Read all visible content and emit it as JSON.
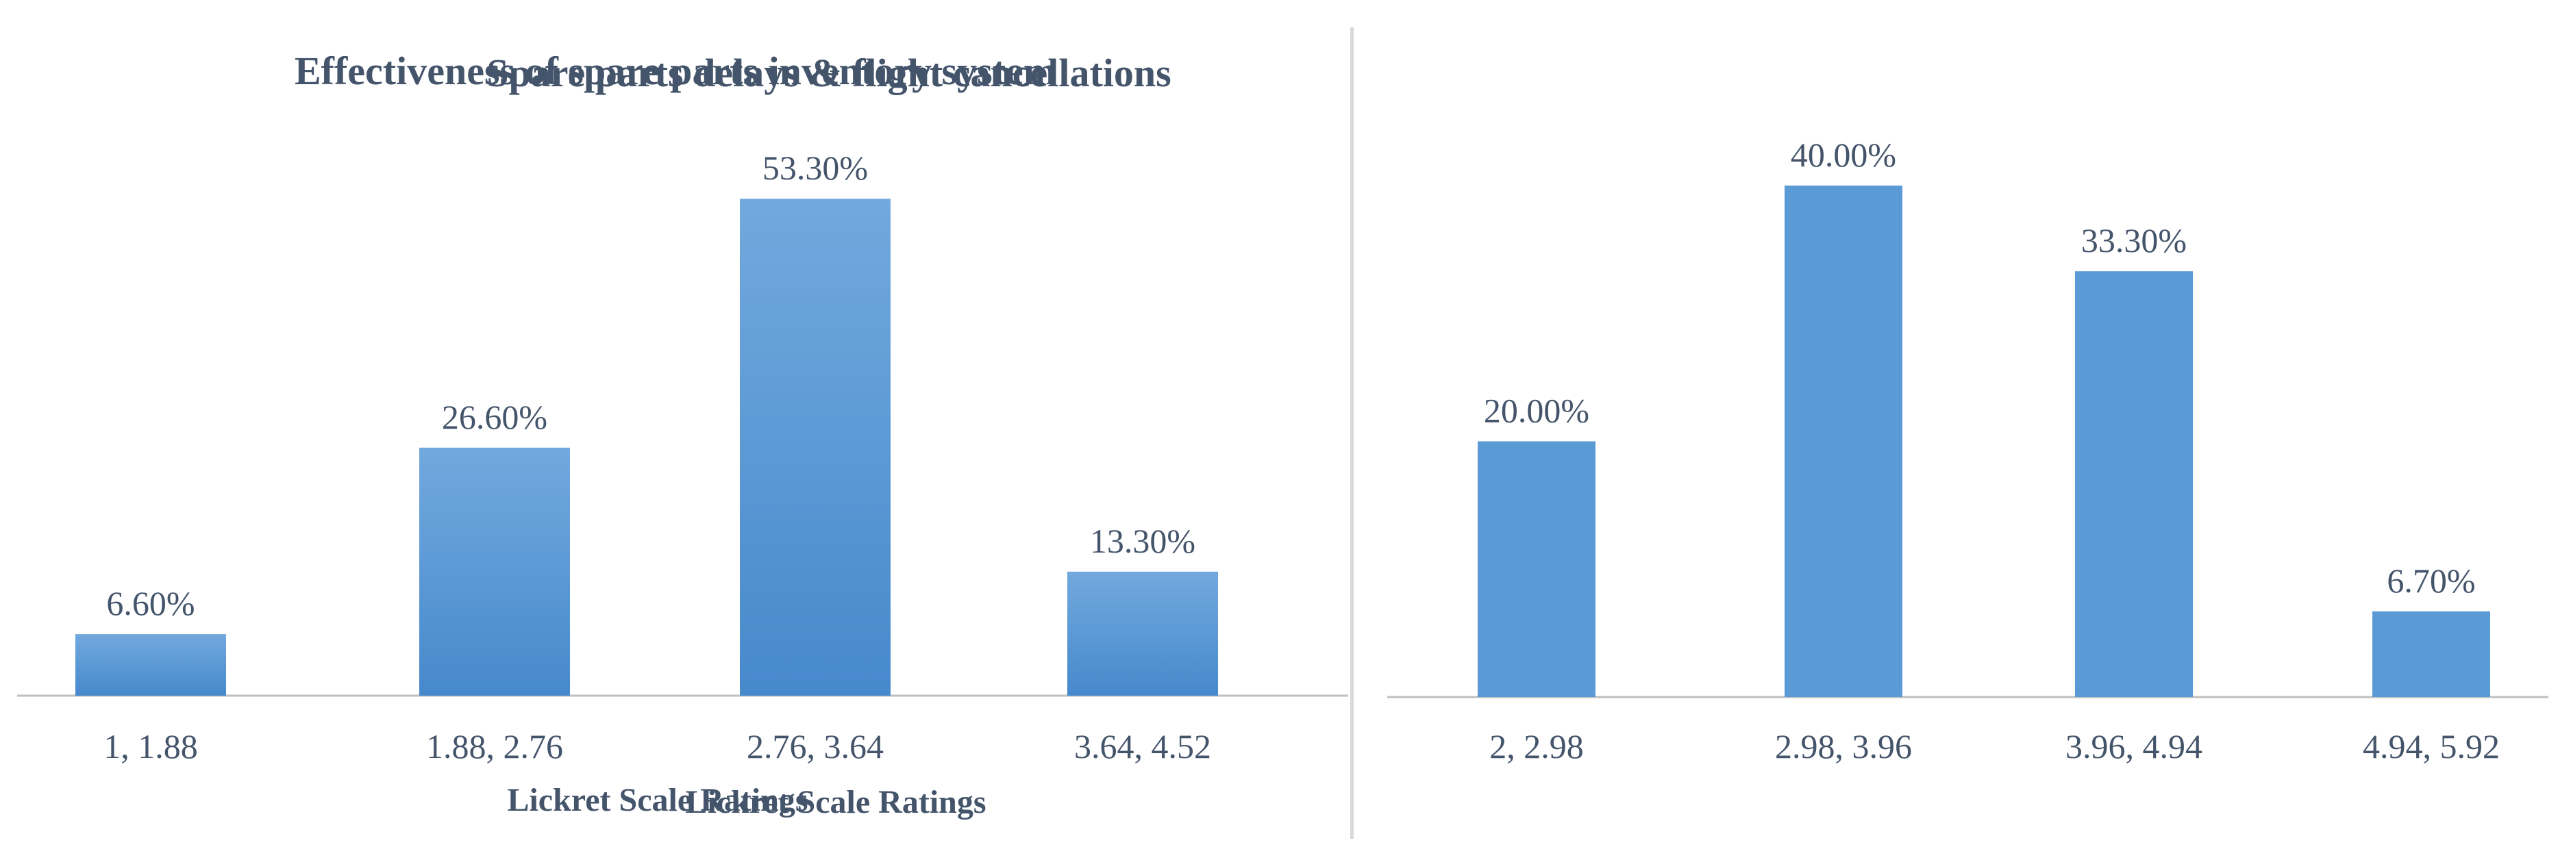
{
  "chart_data": [
    {
      "type": "bar",
      "title": "Effectiveness of spare parts inventory system",
      "xlabel": "Lickret Scale Ratings",
      "ylabel": "",
      "categories": [
        "1, 1.88",
        "1.88, 2.76",
        "2.76, 3.64",
        "3.64, 4.52"
      ],
      "values": [
        6.6,
        26.6,
        53.3,
        13.3
      ],
      "data_labels": [
        "6.60%",
        "26.60%",
        "53.30%",
        "13.30%"
      ],
      "ylim": [
        0,
        60
      ],
      "grid": false,
      "bar_style": "gradient",
      "bar_color": "#4a8fd0",
      "bar_color_light": "#72a9de"
    },
    {
      "type": "bar",
      "title": "Spare parts delays & flight cancellations",
      "xlabel": "Lickret Scale Ratings",
      "ylabel": "",
      "categories": [
        "2, 2.98",
        "2.98, 3.96",
        "3.96, 4.94",
        "4.94, 5.92"
      ],
      "values": [
        20.0,
        40.0,
        33.3,
        6.7
      ],
      "data_labels": [
        "20.00%",
        "40.00%",
        "33.30%",
        "6.70%"
      ],
      "ylim": [
        0,
        46
      ],
      "grid": false,
      "bar_style": "solid",
      "bar_color": "#5b9bd5"
    }
  ],
  "colors": {
    "text": "#44546a",
    "axis": "#bfbfbf",
    "divider": "#d9d9d9"
  }
}
